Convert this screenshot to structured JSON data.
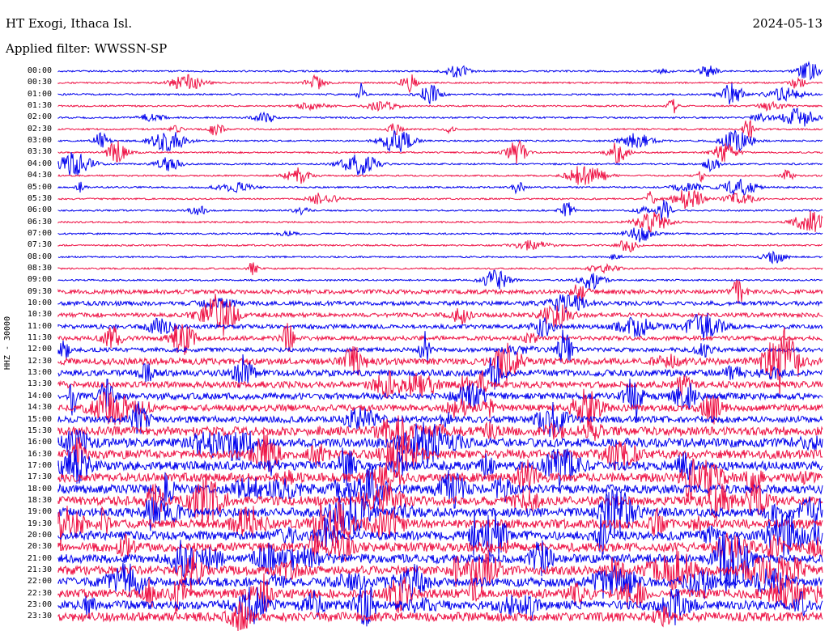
{
  "header": {
    "station": "HT Exogi, Ithaca Isl.",
    "date": "2024-05-13",
    "filter": "Applied filter: WWSSN-SP"
  },
  "channel_label": "HHZ - 30000",
  "colors": {
    "trace_a": "#0000ee",
    "trace_b": "#ee1144",
    "text": "#000000",
    "background": "#ffffff"
  },
  "rows": [
    {
      "time": "00:00"
    },
    {
      "time": "00:30"
    },
    {
      "time": "01:00"
    },
    {
      "time": "01:30"
    },
    {
      "time": "02:00"
    },
    {
      "time": "02:30"
    },
    {
      "time": "03:00"
    },
    {
      "time": "03:30"
    },
    {
      "time": "04:00"
    },
    {
      "time": "04:30"
    },
    {
      "time": "05:00"
    },
    {
      "time": "05:30"
    },
    {
      "time": "06:00"
    },
    {
      "time": "06:30"
    },
    {
      "time": "07:00"
    },
    {
      "time": "07:30"
    },
    {
      "time": "08:00"
    },
    {
      "time": "08:30"
    },
    {
      "time": "09:00"
    },
    {
      "time": "09:30"
    },
    {
      "time": "10:00"
    },
    {
      "time": "10:30"
    },
    {
      "time": "11:00"
    },
    {
      "time": "11:30"
    },
    {
      "time": "12:00"
    },
    {
      "time": "12:30"
    },
    {
      "time": "13:00"
    },
    {
      "time": "13:30"
    },
    {
      "time": "14:00"
    },
    {
      "time": "14:30"
    },
    {
      "time": "15:00"
    },
    {
      "time": "15:30"
    },
    {
      "time": "16:00"
    },
    {
      "time": "16:30"
    },
    {
      "time": "17:00"
    },
    {
      "time": "17:30"
    },
    {
      "time": "18:00"
    },
    {
      "time": "18:30"
    },
    {
      "time": "19:00"
    },
    {
      "time": "19:30"
    },
    {
      "time": "20:00"
    },
    {
      "time": "20:30"
    },
    {
      "time": "21:00"
    },
    {
      "time": "21:30"
    },
    {
      "time": "22:00"
    },
    {
      "time": "22:30"
    },
    {
      "time": "23:00"
    },
    {
      "time": "23:30"
    }
  ]
}
